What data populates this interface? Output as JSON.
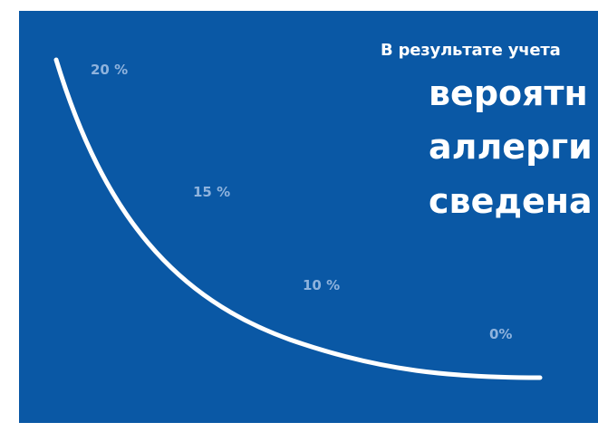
{
  "colors": {
    "panel_background": "#0a58a5",
    "curve": "#ffffff",
    "data_label": "#8fb3dd",
    "text": "#ffffff"
  },
  "text": {
    "subtitle": "В результате учета",
    "headline_lines": [
      "вероятн",
      "аллерги",
      "сведена"
    ]
  },
  "chart_data": {
    "type": "line",
    "curve": "smooth",
    "x": [
      1,
      2,
      3,
      4
    ],
    "values": [
      20,
      15,
      10,
      0
    ],
    "data_labels": [
      "20 %",
      "15 %",
      "10 %",
      "0%"
    ],
    "title": "",
    "xlabel": "",
    "ylabel": "",
    "ylim": [
      0,
      20
    ],
    "axes_visible": false,
    "grid": false,
    "legend": "none"
  }
}
